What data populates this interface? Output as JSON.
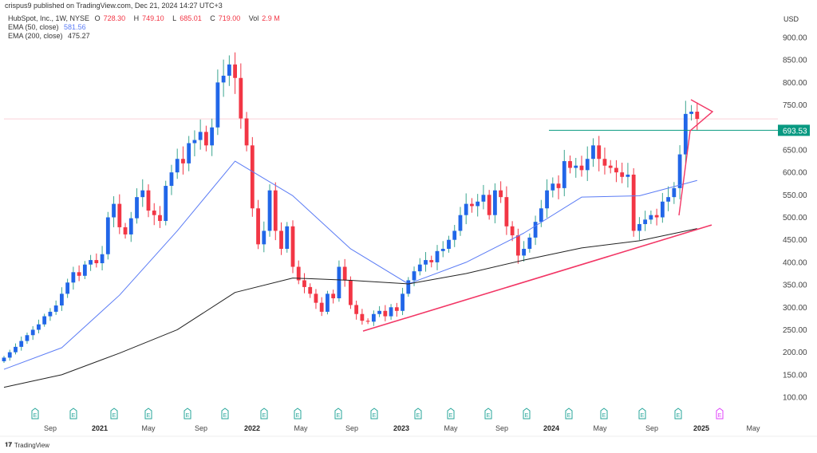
{
  "header": {
    "published": "crispus9 published on TradingView.com, Dec 21, 2024 14:27 UTC+3",
    "symbol": "HubSpot, Inc., 1W, NYSE",
    "open_label": "O",
    "open": "728.30",
    "high_label": "H",
    "high": "749.10",
    "low_label": "L",
    "low": "685.01",
    "close_label": "C",
    "close": "719.00",
    "vol_label": "Vol",
    "vol": "2.9 M",
    "ema50_label": "EMA (50, close)",
    "ema50_value": "581.56",
    "ema200_label": "EMA (200, close)",
    "ema200_value": "475.27",
    "currency": "USD"
  },
  "footer": {
    "brand": "TradingView",
    "logo_text": "TV"
  },
  "chart_data": {
    "type": "candlestick",
    "interval": "1W",
    "ylim": [
      50,
      940
    ],
    "y_ticks": [
      "900.00",
      "850.00",
      "800.00",
      "750.00",
      "650.00",
      "600.00",
      "550.00",
      "500.00",
      "450.00",
      "400.00",
      "350.00",
      "300.00",
      "250.00",
      "200.00",
      "150.00",
      "100.00"
    ],
    "x_ticks": [
      {
        "label": "Sep",
        "bold": false
      },
      {
        "label": "2021",
        "bold": true
      },
      {
        "label": "May",
        "bold": false
      },
      {
        "label": "Sep",
        "bold": false
      },
      {
        "label": "2022",
        "bold": true
      },
      {
        "label": "May",
        "bold": false
      },
      {
        "label": "Sep",
        "bold": false
      },
      {
        "label": "2023",
        "bold": true
      },
      {
        "label": "May",
        "bold": false
      },
      {
        "label": "Sep",
        "bold": false
      },
      {
        "label": "2024",
        "bold": true
      },
      {
        "label": "May",
        "bold": false
      },
      {
        "label": "Sep",
        "bold": false
      },
      {
        "label": "2025",
        "bold": true
      },
      {
        "label": "May",
        "bold": false
      }
    ],
    "closes": [
      188,
      200,
      212,
      225,
      238,
      250,
      262,
      280,
      290,
      304,
      330,
      355,
      378,
      370,
      395,
      405,
      398,
      418,
      500,
      530,
      478,
      462,
      498,
      545,
      560,
      515,
      505,
      492,
      570,
      600,
      630,
      620,
      665,
      672,
      690,
      660,
      700,
      800,
      815,
      840,
      810,
      720,
      660,
      520,
      440,
      470,
      560,
      470,
      430,
      480,
      390,
      360,
      345,
      330,
      310,
      290,
      330,
      320,
      390,
      360,
      305,
      285,
      270,
      268,
      285,
      292,
      280,
      300,
      292,
      330,
      360,
      380,
      395,
      405,
      400,
      425,
      430,
      450,
      470,
      505,
      530,
      525,
      535,
      550,
      505,
      560,
      545,
      480,
      460,
      415,
      430,
      455,
      490,
      520,
      560,
      575,
      565,
      625,
      610,
      615,
      605,
      630,
      660,
      630,
      615,
      610,
      600,
      590,
      595,
      470,
      485,
      495,
      505,
      500,
      535,
      545,
      565,
      640,
      730,
      735,
      719
    ],
    "ema50_sampled_every_10": [
      162,
      210,
      327,
      470,
      625,
      548,
      430,
      352,
      400,
      465,
      545,
      548,
      582
    ],
    "ema200_sampled_every_10": [
      122,
      150,
      198,
      250,
      333,
      365,
      360,
      352,
      375,
      405,
      432,
      448,
      475
    ],
    "series": [
      {
        "name": "EMA (50, close)",
        "color": "#5b7cf5"
      },
      {
        "name": "EMA (200, close)",
        "color": "#222222"
      }
    ],
    "last_price": 719.0,
    "resistance": {
      "value": 693.53,
      "label": "693.53",
      "color": "#089981"
    },
    "support_trendline": {
      "start_price": 247,
      "end_price": 483,
      "color": "#f23665"
    },
    "earnings_marker": "E",
    "upcoming_earnings_color": "#e040fb",
    "colors": {
      "up": "#2166e8",
      "down": "#f23645",
      "up_wick": "#3aa58f",
      "down_wick": "#f23645"
    }
  }
}
